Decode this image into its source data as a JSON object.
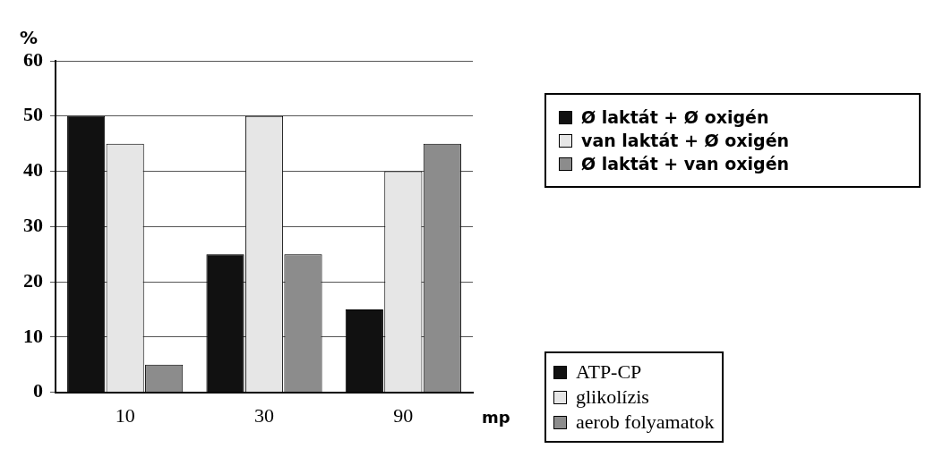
{
  "chart_data": {
    "type": "bar",
    "ylabel": "%",
    "xlabel": "mp",
    "categories": [
      "10",
      "30",
      "90"
    ],
    "series": [
      {
        "name": "ATP-CP",
        "color": "#111111",
        "values": [
          50,
          25,
          15
        ]
      },
      {
        "name": "glikolízis",
        "color": "#e6e6e6",
        "values": [
          45,
          50,
          40
        ]
      },
      {
        "name": "aerob folyamatok",
        "color": "#8c8c8c",
        "values": [
          5,
          25,
          45
        ]
      }
    ],
    "ylim": [
      0,
      60
    ],
    "yticks": [
      0,
      10,
      20,
      30,
      40,
      50,
      60
    ],
    "grid": "y",
    "legend": "right",
    "annotations": [
      "Ø laktát + Ø oxigén",
      "van laktát + Ø oxigén",
      "Ø laktát + van oxigén"
    ]
  }
}
